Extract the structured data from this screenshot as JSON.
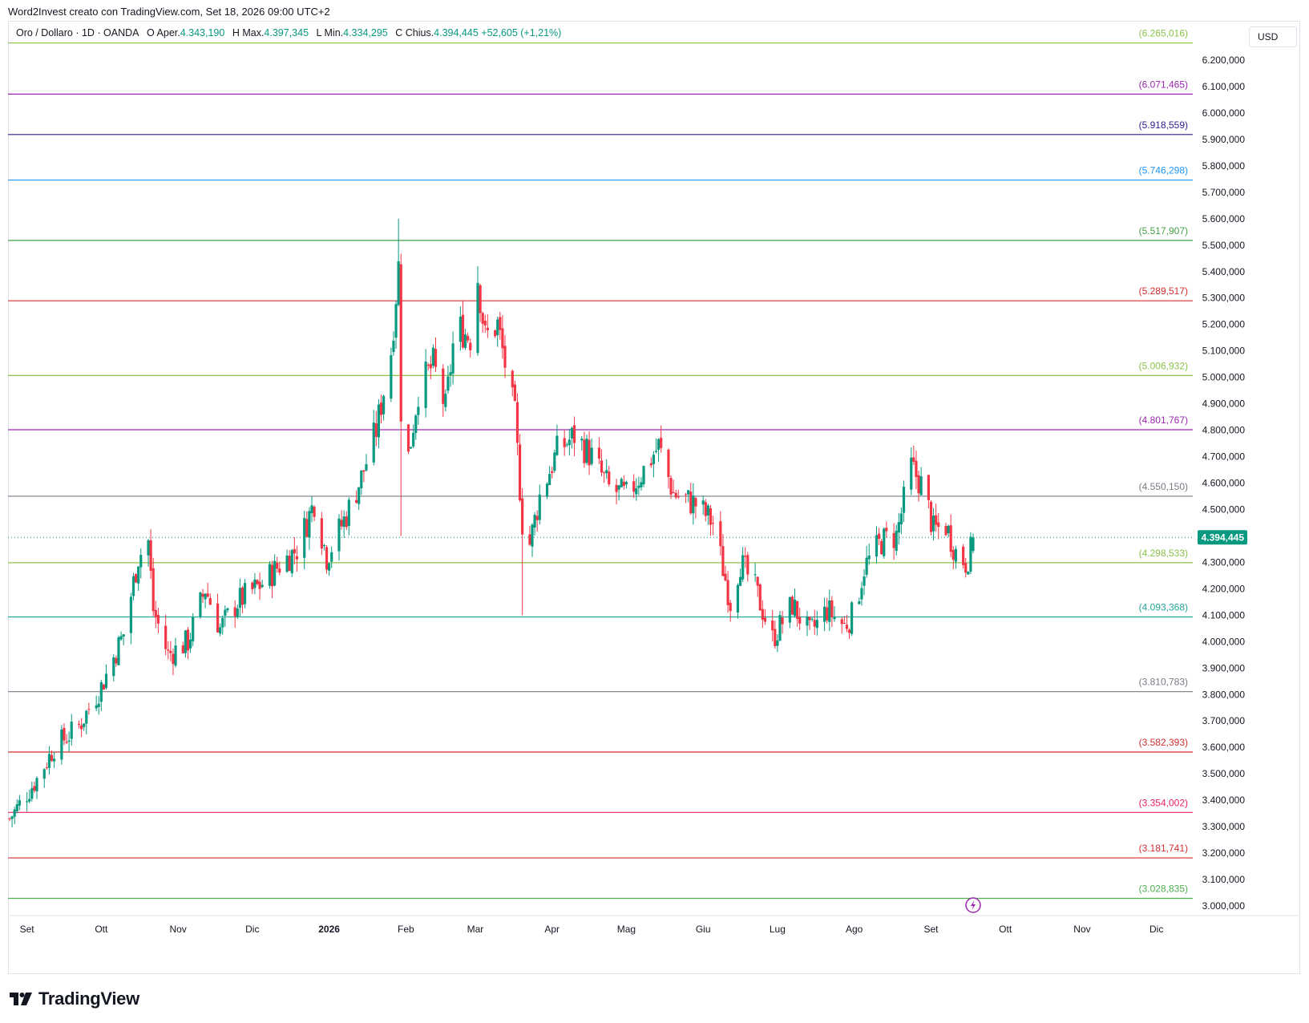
{
  "caption": "Word2Invest creato con TradingView.com, Set 18, 2026 09:00 UTC+2",
  "legend": {
    "symbol": "Oro / Dollaro · 1D · OANDA",
    "o_key": "O",
    "o_label": "Aper.",
    "o_value": "4.343,190",
    "h_key": "H",
    "h_label": "Max.",
    "h_value": "4.397,345",
    "l_key": "L",
    "l_label": "Min.",
    "l_value": "4.334,295",
    "c_key": "C",
    "c_label": "Chius.",
    "c_value": "4.394,445",
    "change": "+52,605 (+1,21%)"
  },
  "currency": "USD",
  "brand": "TradingView",
  "colors": {
    "up": "#089981",
    "down": "#f23645",
    "price_tag": "#089981",
    "grid": "#e0e3eb"
  },
  "chart_data": {
    "type": "candlestick",
    "title": "Oro / Dollaro · 1D · OANDA",
    "xlabel": "",
    "ylabel": "",
    "ylim": [
      2950000,
      6300000
    ],
    "y_ticks": [
      3000000,
      3100000,
      3200000,
      3300000,
      3400000,
      3500000,
      3600000,
      3700000,
      3800000,
      3900000,
      4000000,
      4100000,
      4200000,
      4300000,
      4400000,
      4500000,
      4600000,
      4700000,
      4800000,
      4900000,
      5000000,
      5100000,
      5200000,
      5300000,
      5400000,
      5500000,
      5600000,
      5700000,
      5800000,
      5900000,
      6000000,
      6100000,
      6200000
    ],
    "y_tick_labels": [
      "3.000,000",
      "3.100,000",
      "3.200,000",
      "3.300,000",
      "3.400,000",
      "3.500,000",
      "3.600,000",
      "3.700,000",
      "3.800,000",
      "3.900,000",
      "4.000,000",
      "4.100,000",
      "4.200,000",
      "4.300,000",
      "4.400,000",
      "4.500,000",
      "4.600,000",
      "4.700,000",
      "4.800,000",
      "4.900,000",
      "5.000,000",
      "5.100,000",
      "5.200,000",
      "5.300,000",
      "5.400,000",
      "5.500,000",
      "5.600,000",
      "5.700,000",
      "5.800,000",
      "5.900,000",
      "6.000,000",
      "6.100,000",
      "6.200,000"
    ],
    "x_start": "2025-08-25",
    "x_end": "2026-12-31",
    "x_ticks": [
      {
        "date": "2025-09-01",
        "label": "Set",
        "bold": false
      },
      {
        "date": "2025-10-01",
        "label": "Ott",
        "bold": false
      },
      {
        "date": "2025-11-01",
        "label": "Nov",
        "bold": false
      },
      {
        "date": "2025-12-01",
        "label": "Dic",
        "bold": false
      },
      {
        "date": "2026-01-01",
        "label": "2026",
        "bold": true
      },
      {
        "date": "2026-02-01",
        "label": "Feb",
        "bold": false
      },
      {
        "date": "2026-03-01",
        "label": "Mar",
        "bold": false
      },
      {
        "date": "2026-04-01",
        "label": "Apr",
        "bold": false
      },
      {
        "date": "2026-05-01",
        "label": "Mag",
        "bold": false
      },
      {
        "date": "2026-06-01",
        "label": "Giu",
        "bold": false
      },
      {
        "date": "2026-07-01",
        "label": "Lug",
        "bold": false
      },
      {
        "date": "2026-08-01",
        "label": "Ago",
        "bold": false
      },
      {
        "date": "2026-09-01",
        "label": "Set",
        "bold": false
      },
      {
        "date": "2026-10-01",
        "label": "Ott",
        "bold": false
      },
      {
        "date": "2026-11-01",
        "label": "Nov",
        "bold": false
      },
      {
        "date": "2026-12-01",
        "label": "Dic",
        "bold": false
      }
    ],
    "last_price": {
      "value": 4394445,
      "label": "4.394,445"
    },
    "levels": [
      {
        "value": 6265016,
        "label": "(6.265,016)",
        "color": "#8bc34a"
      },
      {
        "value": 6071465,
        "label": "(6.071,465)",
        "color": "#9c27b0"
      },
      {
        "value": 5918559,
        "label": "(5.918,559)",
        "color": "#311b92"
      },
      {
        "value": 5746298,
        "label": "(5.746,298)",
        "color": "#2196f3"
      },
      {
        "value": 5517907,
        "label": "(5.517,907)",
        "color": "#43a047"
      },
      {
        "value": 5289517,
        "label": "(5.289,517)",
        "color": "#d32f2f"
      },
      {
        "value": 5006932,
        "label": "(5.006,932)",
        "color": "#8bc34a"
      },
      {
        "value": 4801767,
        "label": "(4.801,767)",
        "color": "#9c27b0"
      },
      {
        "value": 4550150,
        "label": "(4.550,150)",
        "color": "#787b86"
      },
      {
        "value": 4298533,
        "label": "(4.298,533)",
        "color": "#8bc34a"
      },
      {
        "value": 4093368,
        "label": "(4.093,368)",
        "color": "#26a69a"
      },
      {
        "value": 3810783,
        "label": "(3.810,783)",
        "color": "#787b86"
      },
      {
        "value": 3582393,
        "label": "(3.582,393)",
        "color": "#d32f2f"
      },
      {
        "value": 3354002,
        "label": "(3.354,002)",
        "color": "#e91e63"
      },
      {
        "value": 3181741,
        "label": "(3.181,741)",
        "color": "#d32f2f"
      },
      {
        "value": 3028835,
        "label": "(3.028,835)",
        "color": "#4caf50"
      }
    ],
    "close_path": [
      {
        "date": "2025-08-25",
        "close": 3330000
      },
      {
        "date": "2025-09-05",
        "close": 3480000
      },
      {
        "date": "2025-09-12",
        "close": 3600000
      },
      {
        "date": "2025-09-22",
        "close": 3680000
      },
      {
        "date": "2025-10-01",
        "close": 3830000
      },
      {
        "date": "2025-10-10",
        "close": 4030000
      },
      {
        "date": "2025-10-16",
        "close": 4320000
      },
      {
        "date": "2025-10-20",
        "close": 4380000
      },
      {
        "date": "2025-10-22",
        "close": 4120000
      },
      {
        "date": "2025-10-28",
        "close": 3950000
      },
      {
        "date": "2025-11-05",
        "close": 4000000
      },
      {
        "date": "2025-11-12",
        "close": 4200000
      },
      {
        "date": "2025-11-18",
        "close": 4050000
      },
      {
        "date": "2025-11-25",
        "close": 4150000
      },
      {
        "date": "2025-12-05",
        "close": 4220000
      },
      {
        "date": "2025-12-12",
        "close": 4290000
      },
      {
        "date": "2025-12-19",
        "close": 4350000
      },
      {
        "date": "2025-12-26",
        "close": 4530000
      },
      {
        "date": "2025-12-31",
        "close": 4320000
      },
      {
        "date": "2026-01-08",
        "close": 4480000
      },
      {
        "date": "2026-01-14",
        "close": 4620000
      },
      {
        "date": "2026-01-20",
        "close": 4800000
      },
      {
        "date": "2026-01-26",
        "close": 5100000
      },
      {
        "date": "2026-01-29",
        "close": 5420000
      },
      {
        "date": "2026-01-30",
        "close": 4880000
      },
      {
        "date": "2026-02-02",
        "close": 4700000
      },
      {
        "date": "2026-02-06",
        "close": 4950000
      },
      {
        "date": "2026-02-12",
        "close": 5050000
      },
      {
        "date": "2026-02-17",
        "close": 4880000
      },
      {
        "date": "2026-02-21",
        "close": 5200000
      },
      {
        "date": "2026-02-27",
        "close": 5150000
      },
      {
        "date": "2026-03-02",
        "close": 5380000
      },
      {
        "date": "2026-03-05",
        "close": 5150000
      },
      {
        "date": "2026-03-10",
        "close": 5200000
      },
      {
        "date": "2026-03-13",
        "close": 5050000
      },
      {
        "date": "2026-03-17",
        "close": 4850000
      },
      {
        "date": "2026-03-20",
        "close": 4450000
      },
      {
        "date": "2026-03-23",
        "close": 4370000
      },
      {
        "date": "2026-03-27",
        "close": 4550000
      },
      {
        "date": "2026-04-03",
        "close": 4720000
      },
      {
        "date": "2026-04-10",
        "close": 4780000
      },
      {
        "date": "2026-04-17",
        "close": 4700000
      },
      {
        "date": "2026-04-24",
        "close": 4580000
      },
      {
        "date": "2026-05-01",
        "close": 4550000
      },
      {
        "date": "2026-05-08",
        "close": 4650000
      },
      {
        "date": "2026-05-14",
        "close": 4740000
      },
      {
        "date": "2026-05-20",
        "close": 4560000
      },
      {
        "date": "2026-05-29",
        "close": 4520000
      },
      {
        "date": "2026-06-05",
        "close": 4450000
      },
      {
        "date": "2026-06-12",
        "close": 4150000
      },
      {
        "date": "2026-06-16",
        "close": 4300000
      },
      {
        "date": "2026-06-22",
        "close": 4200000
      },
      {
        "date": "2026-06-29",
        "close": 4010000
      },
      {
        "date": "2026-07-07",
        "close": 4140000
      },
      {
        "date": "2026-07-14",
        "close": 4030000
      },
      {
        "date": "2026-07-21",
        "close": 4120000
      },
      {
        "date": "2026-07-28",
        "close": 4060000
      },
      {
        "date": "2026-08-01",
        "close": 4110000
      },
      {
        "date": "2026-08-05",
        "close": 4280000
      },
      {
        "date": "2026-08-12",
        "close": 4380000
      },
      {
        "date": "2026-08-18",
        "close": 4400000
      },
      {
        "date": "2026-08-24",
        "close": 4660000
      },
      {
        "date": "2026-08-29",
        "close": 4580000
      },
      {
        "date": "2026-09-02",
        "close": 4420000
      },
      {
        "date": "2026-09-07",
        "close": 4440000
      },
      {
        "date": "2026-09-11",
        "close": 4340000
      },
      {
        "date": "2026-09-15",
        "close": 4300000
      },
      {
        "date": "2026-09-17",
        "close": 4341840
      },
      {
        "date": "2026-09-18",
        "close": 4394445
      }
    ],
    "extremes": [
      {
        "date": "2026-01-29",
        "high": 5600000
      },
      {
        "date": "2026-01-30",
        "low": 4400000
      },
      {
        "date": "2026-03-02",
        "high": 5420000
      },
      {
        "date": "2026-03-20",
        "low": 4100000
      },
      {
        "date": "2026-09-18",
        "high": 4397345,
        "low": 4334295,
        "open": 4343190
      }
    ]
  }
}
